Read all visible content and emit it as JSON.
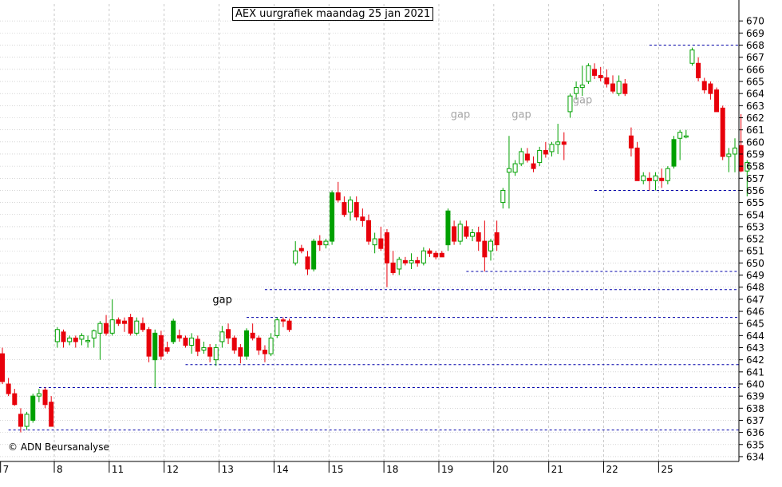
{
  "chart_data": {
    "type": "candlestick",
    "title": "AEX uurgrafiek maandag 25 jan 2021",
    "copyright": "© ADN Beursanalyse",
    "ylim": [
      633.6,
      671.4
    ],
    "y_ticks": [
      634,
      635,
      636,
      637,
      638,
      639,
      640,
      641,
      642,
      643,
      644,
      645,
      646,
      647,
      648,
      649,
      650,
      651,
      652,
      653,
      654,
      655,
      656,
      657,
      658,
      659,
      660,
      661,
      662,
      663,
      664,
      665,
      666,
      667,
      668,
      669,
      670
    ],
    "x_day_labels": [
      {
        "label": "7",
        "i": 0
      },
      {
        "label": "8",
        "i": 9
      },
      {
        "label": "11",
        "i": 18
      },
      {
        "label": "12",
        "i": 27
      },
      {
        "label": "13",
        "i": 36
      },
      {
        "label": "14",
        "i": 45
      },
      {
        "label": "15",
        "i": 54
      },
      {
        "label": "18",
        "i": 63
      },
      {
        "label": "19",
        "i": 72
      },
      {
        "label": "20",
        "i": 81
      },
      {
        "label": "21",
        "i": 90
      },
      {
        "label": "22",
        "i": 99
      },
      {
        "label": "25",
        "i": 108
      }
    ],
    "candles": [
      [
        642.5,
        643.0,
        640.0,
        640.2
      ],
      [
        640.0,
        640.5,
        639.0,
        639.2
      ],
      [
        639.2,
        639.6,
        638.2,
        638.3
      ],
      [
        637.5,
        638.0,
        636.0,
        636.5
      ],
      [
        636.5,
        637.7,
        636.2,
        637.5
      ],
      [
        637.0,
        639.2,
        636.8,
        639.0
      ],
      [
        639.0,
        639.6,
        638.5,
        639.2
      ],
      [
        639.5,
        639.7,
        638.0,
        638.3
      ],
      [
        638.5,
        639.0,
        636.5,
        636.5
      ],
      [
        643.5,
        644.7,
        643.0,
        644.5
      ],
      [
        644.3,
        644.5,
        643.0,
        643.5
      ],
      [
        643.5,
        644.0,
        643.2,
        643.8
      ],
      [
        643.8,
        644.0,
        643.0,
        643.5
      ],
      [
        643.7,
        644.2,
        643.2,
        644.0
      ],
      [
        643.5,
        644.0,
        643.0,
        643.6
      ],
      [
        643.8,
        644.5,
        643.0,
        644.4
      ],
      [
        644.2,
        645.2,
        642.0,
        645.0
      ],
      [
        645.0,
        645.7,
        644.0,
        644.2
      ],
      [
        644.2,
        647.0,
        644.0,
        645.3
      ],
      [
        645.3,
        645.5,
        644.8,
        645.0
      ],
      [
        645.2,
        645.5,
        644.3,
        645.0
      ],
      [
        645.5,
        645.8,
        644.0,
        644.2
      ],
      [
        644.2,
        645.5,
        644.0,
        645.2
      ],
      [
        645.0,
        645.5,
        644.3,
        644.5
      ],
      [
        644.5,
        644.7,
        641.8,
        642.3
      ],
      [
        642.0,
        644.5,
        639.7,
        644.2
      ],
      [
        644.0,
        644.4,
        642.0,
        642.3
      ],
      [
        643.0,
        643.5,
        642.5,
        642.7
      ],
      [
        643.5,
        645.4,
        643.3,
        645.2
      ],
      [
        644.0,
        644.5,
        643.5,
        643.8
      ],
      [
        643.8,
        644.0,
        643.0,
        643.2
      ],
      [
        643.2,
        644.2,
        642.5,
        643.8
      ],
      [
        643.7,
        644.0,
        642.3,
        642.7
      ],
      [
        642.8,
        643.5,
        642.5,
        643.0
      ],
      [
        643.0,
        643.3,
        641.8,
        642.3
      ],
      [
        642.0,
        643.3,
        641.5,
        643.0
      ],
      [
        643.5,
        644.8,
        643.0,
        644.3
      ],
      [
        644.5,
        645.0,
        643.3,
        643.8
      ],
      [
        643.8,
        644.0,
        642.5,
        642.8
      ],
      [
        643.0,
        643.3,
        641.7,
        642.3
      ],
      [
        642.3,
        644.6,
        642.0,
        644.4
      ],
      [
        644.2,
        645.0,
        643.6,
        643.8
      ],
      [
        643.8,
        644.0,
        642.4,
        642.8
      ],
      [
        642.8,
        643.2,
        641.8,
        642.5
      ],
      [
        642.5,
        644.2,
        642.3,
        643.8
      ],
      [
        644.0,
        645.5,
        643.8,
        645.3
      ],
      [
        645.3,
        645.5,
        644.7,
        645.2
      ],
      [
        645.2,
        645.4,
        644.3,
        644.5
      ],
      [
        650.0,
        651.8,
        649.8,
        651.0
      ],
      [
        651.2,
        651.5,
        650.8,
        651.0
      ],
      [
        650.5,
        651.0,
        649.0,
        649.5
      ],
      [
        649.5,
        652.0,
        649.3,
        651.8
      ],
      [
        651.8,
        652.3,
        651.0,
        651.5
      ],
      [
        651.5,
        652.0,
        651.2,
        651.8
      ],
      [
        651.8,
        656.0,
        651.5,
        655.8
      ],
      [
        655.8,
        656.7,
        655.0,
        655.2
      ],
      [
        655.0,
        655.5,
        653.8,
        654.0
      ],
      [
        654.2,
        655.5,
        653.5,
        655.2
      ],
      [
        655.0,
        655.5,
        653.5,
        653.8
      ],
      [
        653.8,
        654.5,
        653.0,
        653.5
      ],
      [
        653.5,
        654.0,
        651.5,
        651.8
      ],
      [
        651.5,
        652.5,
        650.8,
        652.0
      ],
      [
        652.0,
        653.0,
        651.0,
        651.2
      ],
      [
        652.5,
        652.8,
        648.0,
        650.0
      ],
      [
        650.0,
        651.0,
        649.0,
        649.2
      ],
      [
        649.5,
        650.5,
        649.0,
        650.3
      ],
      [
        650.2,
        650.5,
        649.8,
        650.0
      ],
      [
        650.0,
        650.8,
        649.5,
        650.2
      ],
      [
        650.2,
        650.5,
        649.7,
        650.0
      ],
      [
        650.0,
        651.3,
        649.8,
        651.0
      ],
      [
        651.0,
        651.2,
        650.5,
        650.8
      ],
      [
        650.8,
        651.0,
        650.3,
        650.5
      ],
      [
        650.8,
        651.0,
        650.5,
        650.5
      ],
      [
        651.5,
        654.5,
        651.0,
        654.3
      ],
      [
        653.0,
        653.5,
        651.5,
        651.8
      ],
      [
        651.8,
        653.5,
        651.5,
        653.2
      ],
      [
        653.0,
        653.5,
        652.0,
        652.2
      ],
      [
        652.2,
        652.8,
        651.8,
        652.5
      ],
      [
        652.5,
        653.0,
        651.0,
        651.8
      ],
      [
        651.8,
        653.5,
        649.3,
        650.5
      ],
      [
        651.0,
        652.0,
        650.2,
        651.8
      ],
      [
        652.5,
        653.5,
        651.0,
        651.5
      ],
      [
        655.0,
        656.2,
        654.5,
        656.0
      ],
      [
        657.5,
        660.5,
        654.5,
        657.8
      ],
      [
        657.5,
        658.5,
        657.2,
        658.2
      ],
      [
        658.2,
        659.5,
        658.0,
        659.2
      ],
      [
        659.0,
        659.5,
        658.3,
        658.5
      ],
      [
        658.2,
        658.8,
        657.5,
        657.8
      ],
      [
        658.3,
        659.6,
        658.0,
        659.3
      ],
      [
        659.3,
        660.0,
        658.7,
        659.0
      ],
      [
        659.2,
        660.0,
        658.8,
        659.8
      ],
      [
        659.8,
        661.5,
        659.0,
        660.0
      ],
      [
        660.0,
        660.8,
        658.5,
        659.8
      ],
      [
        662.5,
        664.0,
        662.0,
        663.8
      ],
      [
        664.0,
        665.0,
        663.5,
        664.5
      ],
      [
        664.5,
        666.3,
        663.8,
        664.7
      ],
      [
        665.0,
        666.5,
        664.8,
        666.3
      ],
      [
        666.0,
        666.5,
        665.2,
        665.5
      ],
      [
        665.5,
        666.2,
        665.0,
        665.3
      ],
      [
        665.3,
        666.0,
        664.5,
        664.8
      ],
      [
        664.8,
        665.5,
        664.0,
        664.2
      ],
      [
        664.0,
        665.5,
        663.8,
        665.0
      ],
      [
        664.8,
        665.2,
        663.8,
        664.0
      ],
      [
        660.5,
        661.2,
        658.8,
        659.5
      ],
      [
        659.5,
        660.0,
        657.0,
        656.8
      ],
      [
        656.8,
        657.5,
        656.5,
        657.2
      ],
      [
        657.0,
        657.5,
        656.0,
        656.8
      ],
      [
        656.8,
        657.5,
        656.0,
        657.2
      ],
      [
        657.0,
        657.8,
        656.2,
        656.8
      ],
      [
        656.8,
        658.0,
        656.5,
        657.8
      ],
      [
        658.0,
        660.5,
        657.8,
        660.2
      ],
      [
        660.3,
        661.0,
        658.5,
        660.8
      ],
      [
        660.5,
        661.0,
        660.3,
        660.5
      ],
      [
        666.5,
        667.8,
        666.3,
        667.6
      ],
      [
        666.5,
        667.0,
        665.0,
        665.3
      ],
      [
        665.0,
        665.3,
        664.0,
        664.3
      ],
      [
        664.8,
        665.0,
        663.5,
        664.0
      ],
      [
        664.3,
        664.5,
        662.5,
        662.5
      ],
      [
        662.8,
        663.0,
        658.5,
        658.8
      ],
      [
        658.8,
        659.5,
        657.5,
        659.0
      ],
      [
        659.0,
        660.3,
        657.5,
        659.5
      ],
      [
        659.7,
        662.3,
        657.5,
        657.6
      ],
      [
        657.6,
        658.5,
        655.5,
        658.3
      ]
    ],
    "gap_labels": [
      {
        "text": "gap",
        "i": 36,
        "y": 646.7,
        "color": "#000000"
      },
      {
        "text": "gap",
        "i": 75,
        "y": 662.0,
        "color": "#a6a6a6"
      },
      {
        "text": "gap",
        "i": 85,
        "y": 662.0,
        "color": "#a6a6a6"
      },
      {
        "text": "gap",
        "i": 95,
        "y": 663.2,
        "color": "#a6a6a6"
      }
    ],
    "support_lines": [
      {
        "y": 668.0,
        "from_i": 106
      },
      {
        "y": 656.0,
        "from_i": 97
      },
      {
        "y": 649.3,
        "from_i": 76
      },
      {
        "y": 647.8,
        "from_i": 43
      },
      {
        "y": 645.5,
        "from_i": 40
      },
      {
        "y": 641.6,
        "from_i": 30
      },
      {
        "y": 639.7,
        "from_i": 6
      },
      {
        "y": 636.2,
        "from_i": 1
      }
    ],
    "grid": true,
    "colors": {
      "up": "#00a000",
      "down": "#e8000b",
      "line": "#0000aa",
      "grid": "#bdbdbd"
    }
  }
}
